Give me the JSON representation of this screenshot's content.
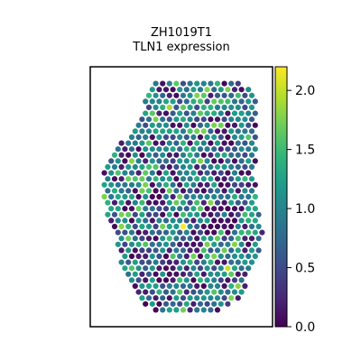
{
  "chart_data": {
    "type": "scatter",
    "title": [
      "ZH1019T1",
      "TLN1 expression"
    ],
    "xlabel": "",
    "ylabel": "",
    "point_style": "hexagonal spatial spots, colored by expression value",
    "colormap": "viridis",
    "colorbar": {
      "range": [
        0.0,
        2.2
      ],
      "ticks": [
        0.0,
        0.5,
        1.0,
        1.5,
        2.0
      ],
      "tick_labels": [
        "0.0",
        "0.5",
        "1.0",
        "1.5",
        "2.0"
      ]
    },
    "summary": {
      "value_range": [
        0.0,
        2.2
      ],
      "typical_value": 1.0,
      "high_spots_note": "sparse bright spots up to about 2.2"
    }
  },
  "colors": {
    "viridis": [
      "#440154",
      "#482878",
      "#3e4a89",
      "#31688e",
      "#26828e",
      "#1f9e89",
      "#35b779",
      "#6ece58",
      "#b5de2b",
      "#fde725"
    ]
  }
}
